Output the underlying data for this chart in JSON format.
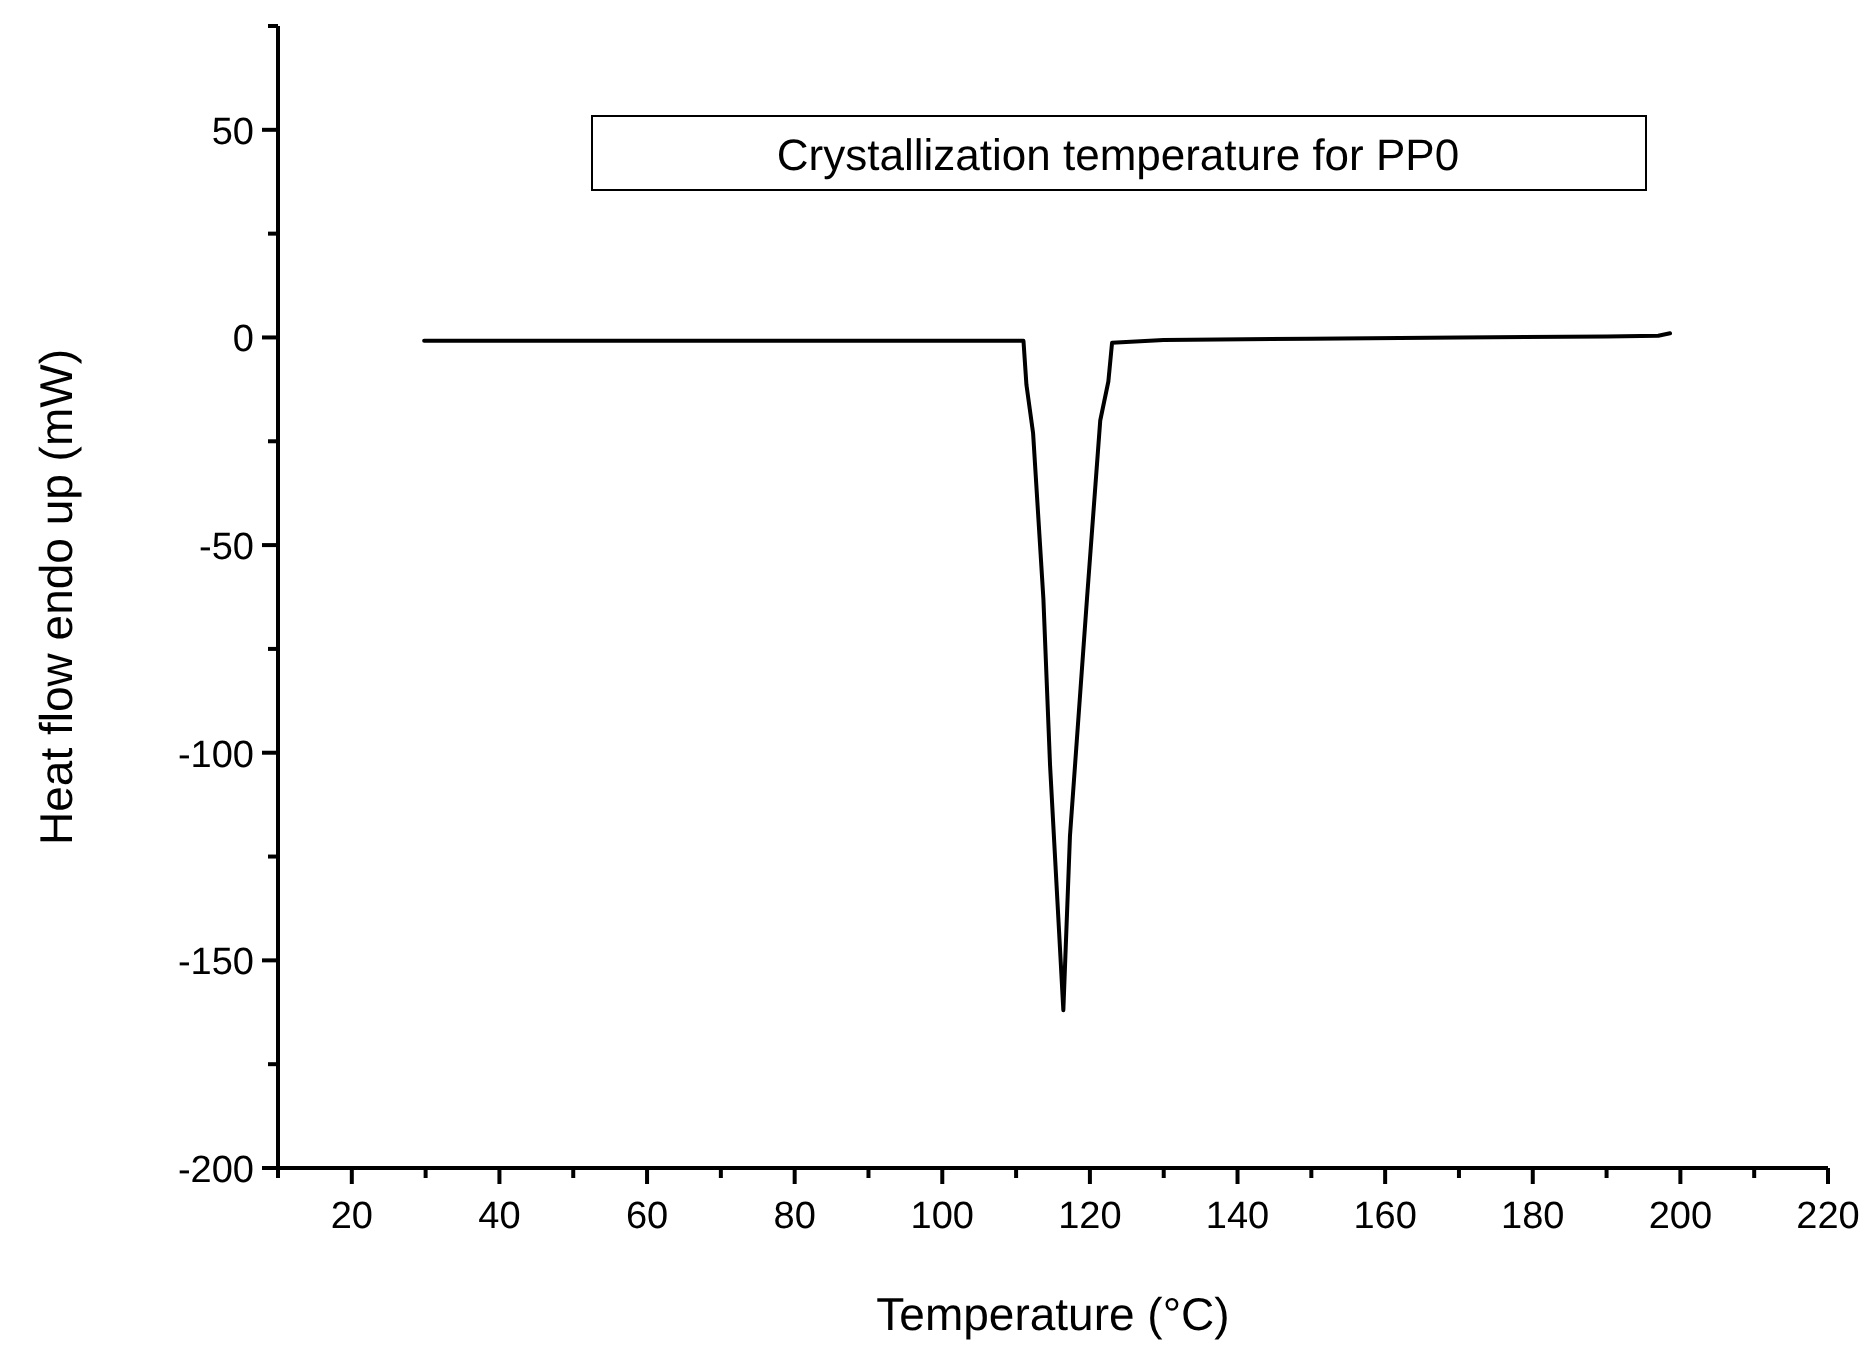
{
  "chart_data": {
    "type": "line",
    "title": "Crystallization temperature for PP0",
    "xlabel": "Temperature (°C)",
    "ylabel": "Heat flow endo up (mW)",
    "xlim": [
      10,
      220
    ],
    "xticks": [
      {
        "value": 10,
        "label": null
      },
      20,
      {
        "value": 30,
        "label": null
      },
      40,
      {
        "value": 50,
        "label": null
      },
      60,
      {
        "value": 70,
        "label": null
      },
      80,
      {
        "value": 90,
        "label": null
      },
      100,
      {
        "value": 110,
        "label": null
      },
      120,
      {
        "value": 130,
        "label": null
      },
      140,
      {
        "value": 150,
        "label": null
      },
      160,
      {
        "value": 170,
        "label": null
      },
      180,
      {
        "value": 190,
        "label": null
      },
      200,
      {
        "value": 210,
        "label": null
      },
      220
    ],
    "ylim": [
      -200,
      75
    ],
    "yticks": [
      -200,
      {
        "value": -175,
        "label": null
      },
      -150,
      {
        "value": -125,
        "label": null
      },
      -100,
      {
        "value": -75,
        "label": null
      },
      -50,
      {
        "value": -25,
        "label": null
      },
      0,
      {
        "value": 25,
        "label": null
      },
      50,
      {
        "value": 75,
        "label": null
      }
    ],
    "grid": false,
    "marker": "none",
    "line_style": "solid",
    "series": [
      {
        "color": "#000000",
        "x": [
          29.8,
          60,
          90,
          111.0,
          111.4,
          112.3,
          113.7,
          114.6,
          116.4,
          117.3,
          119.6,
          121.4,
          122.5,
          123.0,
          130,
          150,
          170,
          190,
          197,
          198.6
        ],
        "values": [
          -0.8,
          -0.8,
          -0.8,
          -0.8,
          -11.4,
          -23,
          -63,
          -103,
          -162,
          -120,
          -63,
          -20,
          -10.6,
          -1.3,
          -0.6,
          -0.3,
          0,
          0.2,
          0.4,
          1
        ]
      }
    ]
  }
}
